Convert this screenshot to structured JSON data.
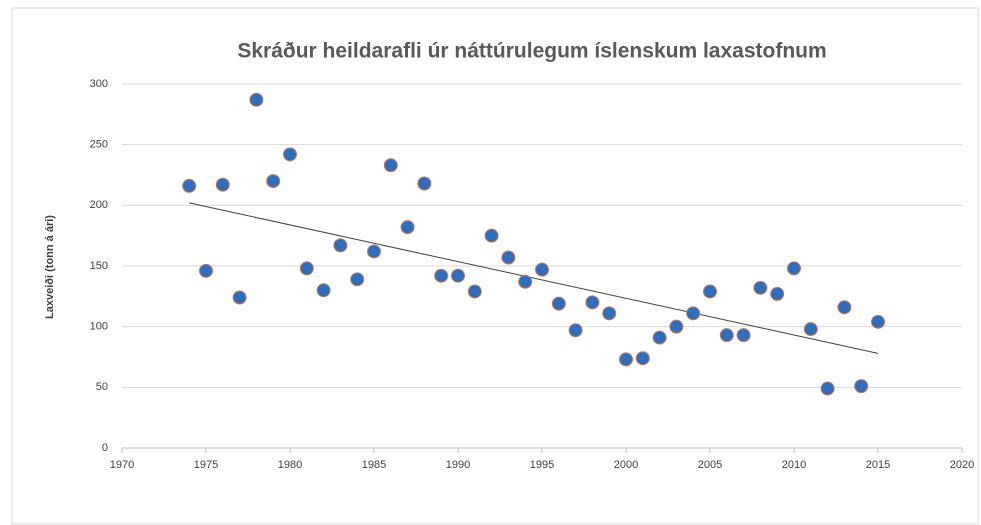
{
  "chart_data": {
    "type": "scatter",
    "title": "Skráður heildarafli úr náttúrulegum íslenskum laxastofnum",
    "y_label": "Laxveiði (tonn á ári)",
    "x": [
      1974,
      1975,
      1976,
      1977,
      1978,
      1979,
      1980,
      1981,
      1982,
      1983,
      1984,
      1985,
      1986,
      1987,
      1988,
      1989,
      1990,
      1991,
      1992,
      1993,
      1994,
      1995,
      1996,
      1997,
      1998,
      1999,
      2000,
      2001,
      2002,
      2003,
      2004,
      2005,
      2006,
      2007,
      2008,
      2009,
      2010,
      2011,
      2012,
      2013,
      2014,
      2015
    ],
    "values": [
      216,
      146,
      217,
      124,
      287,
      220,
      242,
      148,
      130,
      167,
      139,
      162,
      233,
      182,
      218,
      142,
      142,
      129,
      175,
      157,
      137,
      147,
      119,
      97,
      120,
      111,
      73,
      74,
      91,
      100,
      111,
      129,
      93,
      93,
      132,
      127,
      148,
      98,
      49,
      116,
      51,
      104
    ],
    "color": "#2f6eba",
    "trendline": {
      "x": [
        1974,
        2015
      ],
      "values": [
        202,
        78
      ],
      "color": "#404040"
    },
    "xlim": [
      1970,
      2020
    ],
    "xticks": [
      1970,
      1975,
      1980,
      1985,
      1990,
      1995,
      2000,
      2005,
      2010,
      2015,
      2020
    ],
    "ylim": [
      0,
      300
    ],
    "yticks": [
      0,
      50,
      100,
      150,
      200,
      250,
      300
    ],
    "grid": true
  }
}
